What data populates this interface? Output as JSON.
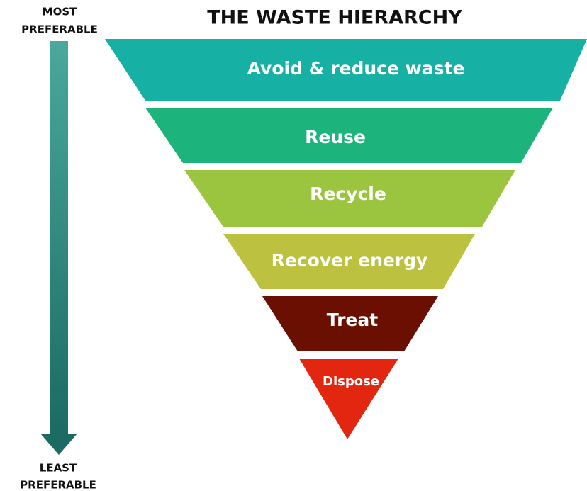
{
  "title": "THE WASTE HIERARCHY",
  "top_label": [
    "MOST",
    "PREFERABLE"
  ],
  "bottom_label": [
    "LEAST",
    "PREFERABLE"
  ],
  "levels": [
    "Avoid & reduce waste",
    "Reuse",
    "Recycle",
    "Recover energy",
    "Treat",
    "Dispose"
  ]
}
